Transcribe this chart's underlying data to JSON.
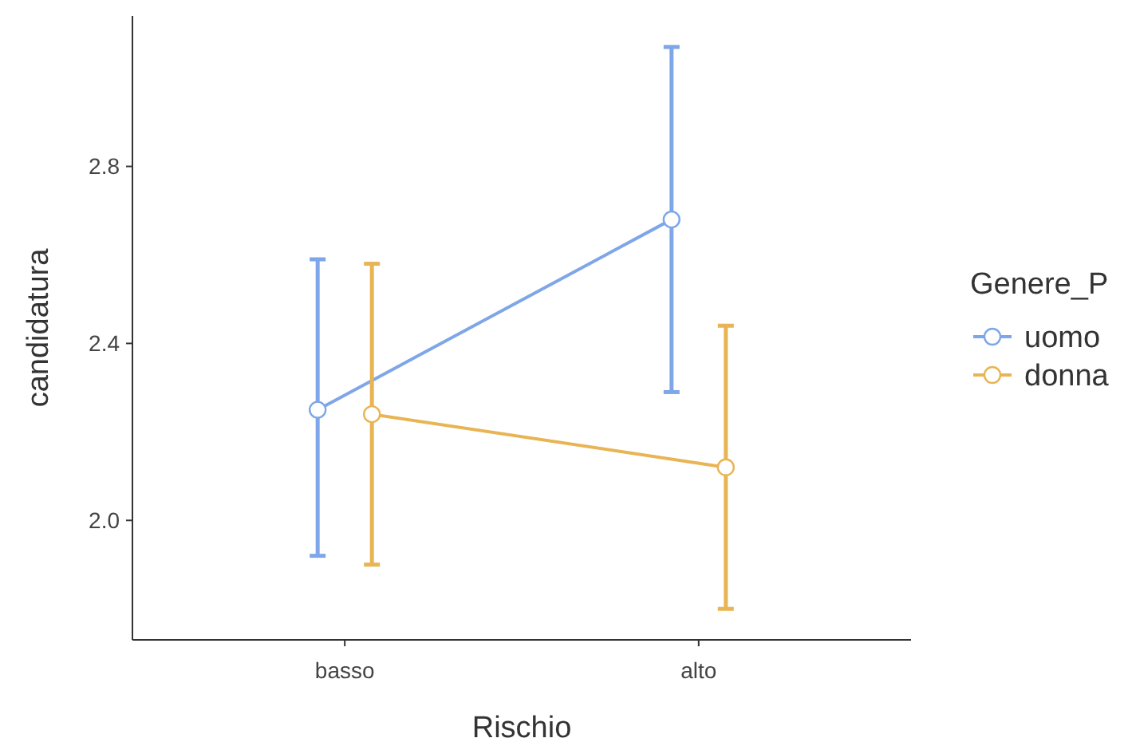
{
  "chart_data": {
    "type": "line",
    "xlabel": "Rischio",
    "ylabel": "candidatura",
    "legend_title": "Genere_P",
    "categories": [
      "basso",
      "alto"
    ],
    "series": [
      {
        "name": "uomo",
        "color": "#7ea6e8",
        "values": [
          2.25,
          2.68
        ],
        "errors": [
          [
            1.92,
            2.59
          ],
          [
            2.29,
            3.07
          ]
        ]
      },
      {
        "name": "donna",
        "color": "#e8b454",
        "values": [
          2.24,
          2.12
        ],
        "errors": [
          [
            1.9,
            2.58
          ],
          [
            1.8,
            2.44
          ]
        ]
      }
    ],
    "ylim": [
      1.73,
      3.14
    ],
    "yticks": [
      {
        "value": 2.0,
        "label": "2.0"
      },
      2.4,
      2.8
    ],
    "marker": "circle",
    "legend": "right",
    "grid": false
  }
}
